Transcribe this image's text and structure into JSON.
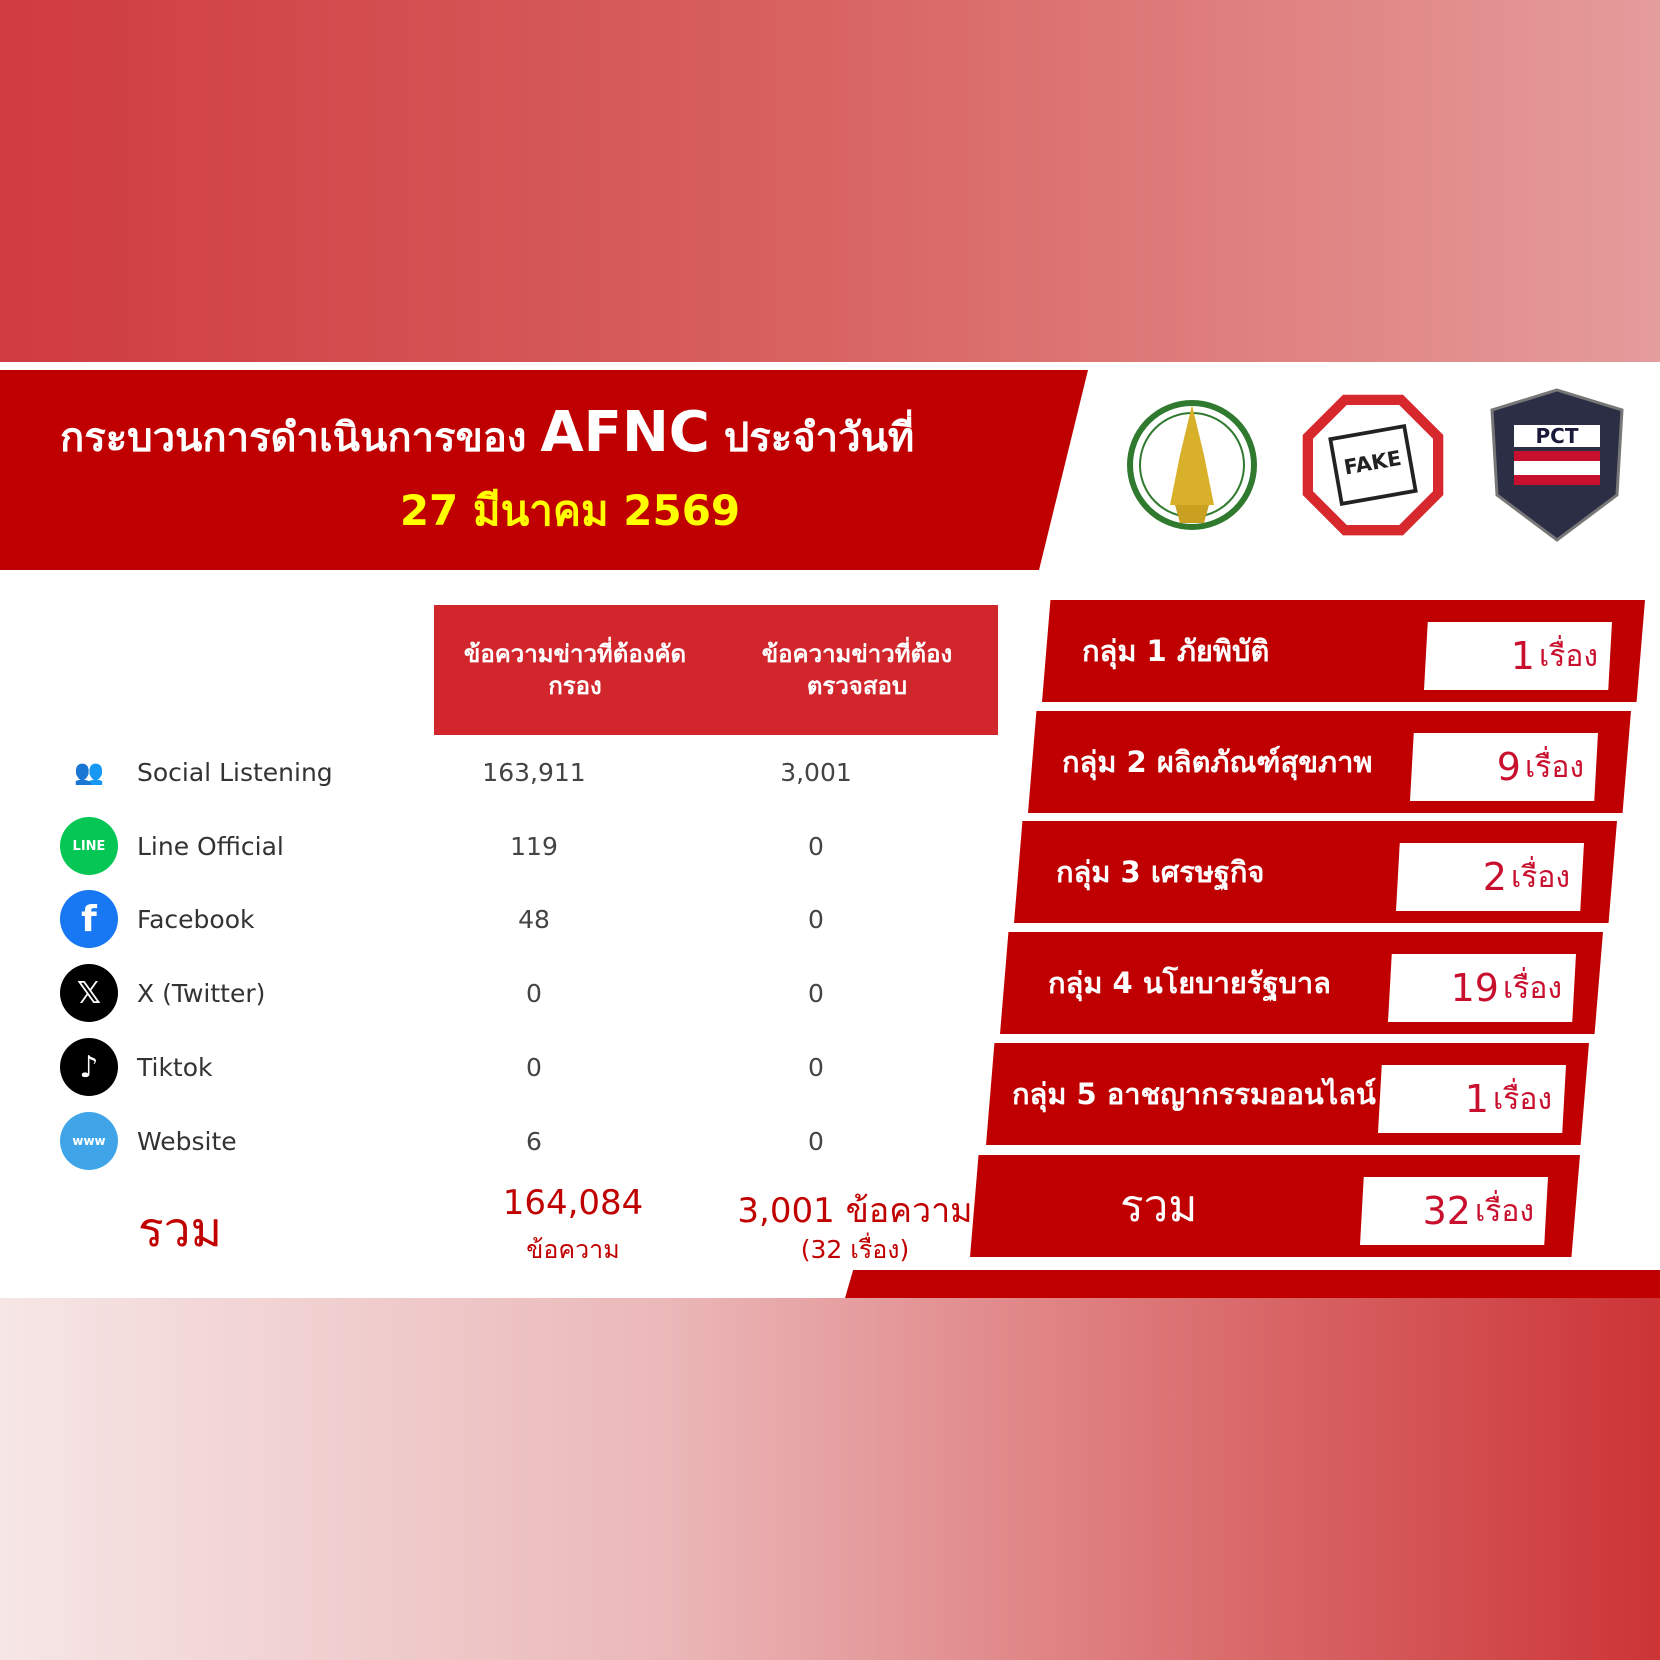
{
  "header": {
    "title": "กระบวนการดำเนินการของ",
    "title_brand": "AFNC",
    "title_suffix": "ประจำวันที่",
    "date": "27 มีนาคม 2569"
  },
  "logos": [
    {
      "name": "ministry-digital-economy-logo",
      "text": "Ministry of Digital Economy and Society"
    },
    {
      "name": "anti-fake-news-logo",
      "text": "ANTI FAKE NEWS THAILAND"
    },
    {
      "name": "pct-logo",
      "text": "PCT Police Cyber Taskforce"
    }
  ],
  "table": {
    "headers": [
      "ข้อความข่าวที่ต้องคัดกรอง",
      "ข้อความข่าวที่ต้องตรวจสอบ"
    ],
    "rows": [
      {
        "source": "Social Listening",
        "icon": "social-listening-icon",
        "screened": "163,911",
        "verify": "3,001"
      },
      {
        "source": "Line Official",
        "icon": "line-icon",
        "screened": "119",
        "verify": "0"
      },
      {
        "source": "Facebook",
        "icon": "facebook-icon",
        "screened": "48",
        "verify": "0"
      },
      {
        "source": "X (Twitter)",
        "icon": "x-twitter-icon",
        "screened": "0",
        "verify": "0"
      },
      {
        "source": "Tiktok",
        "icon": "tiktok-icon",
        "screened": "0",
        "verify": "0"
      },
      {
        "source": "Website",
        "icon": "website-icon",
        "screened": "6",
        "verify": "0"
      }
    ],
    "total": {
      "label": "รวม",
      "screened": "164,084",
      "screened_unit": "ข้อความ",
      "verify": "3,001 ข้อความ",
      "verify_sub": "(32 เรื่อง)"
    }
  },
  "categories": [
    {
      "label": "กลุ่ม 1 ภัยพิบัติ",
      "count": "1",
      "unit": "เรื่อง"
    },
    {
      "label": "กลุ่ม 2 ผลิตภัณฑ์สุขภาพ",
      "count": "9",
      "unit": "เรื่อง"
    },
    {
      "label": "กลุ่ม 3 เศรษฐกิจ",
      "count": "2",
      "unit": "เรื่อง"
    },
    {
      "label": "กลุ่ม 4 นโยบายรัฐบาล",
      "count": "19",
      "unit": "เรื่อง"
    },
    {
      "label": "กลุ่ม 5 อาชญากรรมออนไลน์",
      "count": "1",
      "unit": "เรื่อง"
    },
    {
      "label": "รวม",
      "count": "32",
      "unit": "เรื่อง"
    }
  ],
  "colors": {
    "primary_red": "#c00000",
    "header_red": "#d0262c",
    "date_yellow": "#ffff00"
  }
}
